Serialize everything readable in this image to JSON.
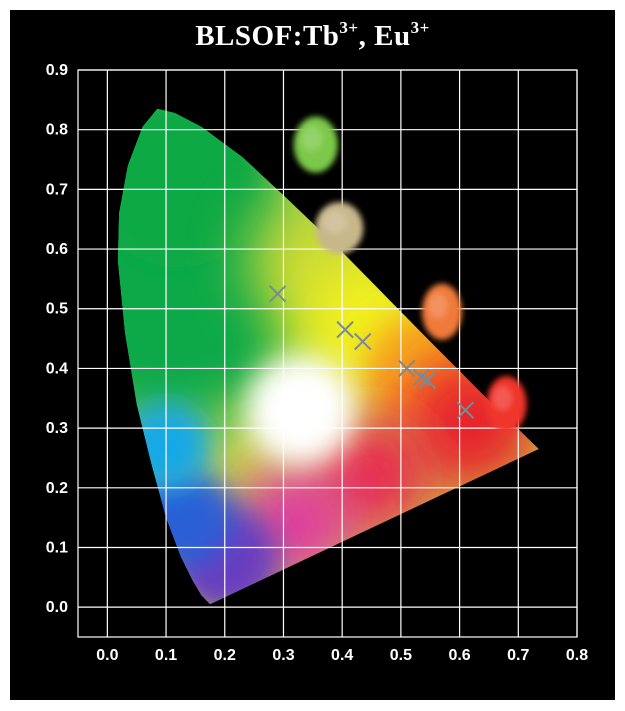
{
  "chart_data": {
    "type": "scatter",
    "title": "BLSOF:Tb",
    "title_sup_1": "3+",
    "title_mid": ", Eu",
    "title_sup_2": "3+",
    "xlabel": "",
    "ylabel": "",
    "xlim": [
      -0.05,
      0.8
    ],
    "ylim": [
      -0.05,
      0.9
    ],
    "grid": true,
    "x_ticks": [
      "0.0",
      "0.1",
      "0.2",
      "0.3",
      "0.4",
      "0.5",
      "0.6",
      "0.7",
      "0.8"
    ],
    "y_ticks": [
      "0.0",
      "0.1",
      "0.2",
      "0.3",
      "0.4",
      "0.5",
      "0.6",
      "0.7",
      "0.8",
      "0.9"
    ],
    "series": [
      {
        "marker": "x",
        "color": "#7a8a96",
        "points": [
          {
            "x": 0.29,
            "y": 0.525
          },
          {
            "x": 0.405,
            "y": 0.465
          },
          {
            "x": 0.435,
            "y": 0.445
          },
          {
            "x": 0.51,
            "y": 0.4
          },
          {
            "x": 0.535,
            "y": 0.385
          },
          {
            "x": 0.545,
            "y": 0.38
          },
          {
            "x": 0.61,
            "y": 0.33
          }
        ]
      }
    ],
    "sample_photo_colors": [
      "#7cc84a",
      "#c8b78a",
      "#f07a3a",
      "#f0352a"
    ]
  }
}
